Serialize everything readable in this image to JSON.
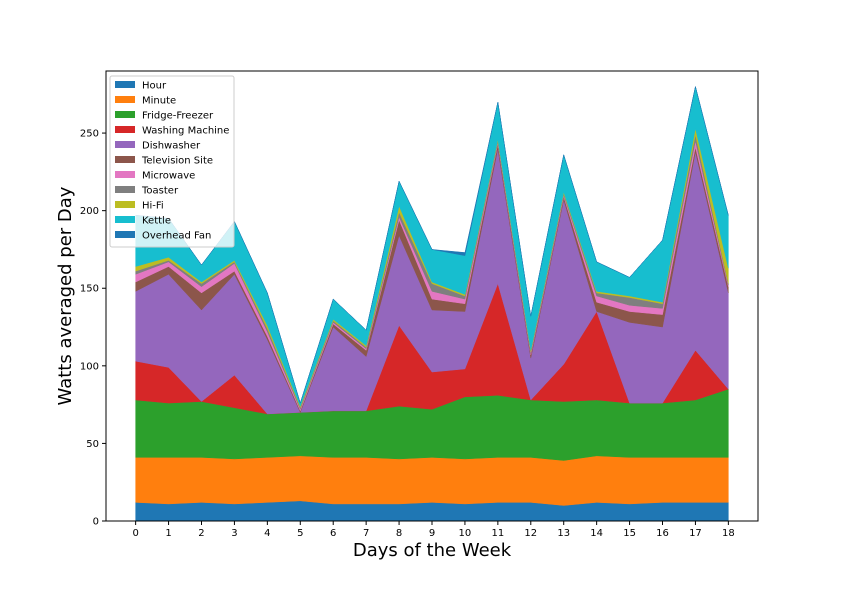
{
  "chart_data": {
    "type": "area",
    "stacked": true,
    "xlabel": "Days of the Week",
    "ylabel": "Watts averaged per Day",
    "x": [
      0,
      1,
      2,
      3,
      4,
      5,
      6,
      7,
      8,
      9,
      10,
      11,
      12,
      13,
      14,
      15,
      16,
      17,
      18
    ],
    "xlim": [
      -0.9,
      18.9
    ],
    "ylim": [
      0,
      290
    ],
    "yticks": [
      0,
      50,
      100,
      150,
      200,
      250
    ],
    "legend_position": "upper-left",
    "grid": false,
    "series": [
      {
        "name": "Hour",
        "color": "#1f77b4",
        "values": [
          12,
          11,
          12,
          11,
          12,
          13,
          11,
          11,
          11,
          12,
          11,
          12,
          12,
          10,
          12,
          11,
          12,
          12,
          12
        ]
      },
      {
        "name": "Minute",
        "color": "#ff7f0e",
        "values": [
          29,
          30,
          29,
          29,
          29,
          29,
          30,
          30,
          29,
          29,
          29,
          29,
          29,
          29,
          30,
          30,
          29,
          29,
          29
        ]
      },
      {
        "name": "Fridge-Freezer",
        "color": "#2ca02c",
        "values": [
          37,
          35,
          36,
          33,
          28,
          28,
          30,
          30,
          34,
          31,
          40,
          40,
          37,
          38,
          36,
          35,
          35,
          37,
          44
        ]
      },
      {
        "name": "Washing Machine",
        "color": "#d62728",
        "values": [
          25,
          23,
          0,
          21,
          0,
          0,
          0,
          0,
          52,
          24,
          18,
          72,
          0,
          24,
          57,
          0,
          0,
          32,
          0
        ]
      },
      {
        "name": "Dishwasher",
        "color": "#9467bd",
        "values": [
          45,
          60,
          59,
          65,
          48,
          0,
          54,
          35,
          58,
          40,
          37,
          87,
          27,
          106,
          0,
          52,
          49,
          128,
          62
        ]
      },
      {
        "name": "Television Site",
        "color": "#8c564b",
        "values": [
          6,
          5,
          11,
          2,
          2,
          1,
          2,
          4,
          10,
          7,
          5,
          3,
          2,
          2,
          6,
          7,
          8,
          3,
          4
        ]
      },
      {
        "name": "Microwave",
        "color": "#e377c2",
        "values": [
          5,
          3,
          4,
          5,
          3,
          1,
          1,
          1,
          2,
          5,
          3,
          1,
          1,
          1,
          4,
          4,
          4,
          4,
          1
        ]
      },
      {
        "name": "Toaster",
        "color": "#7f7f7f",
        "values": [
          2,
          1,
          2,
          1,
          2,
          1,
          1,
          1,
          3,
          5,
          2,
          1,
          1,
          1,
          2,
          5,
          3,
          4,
          1
        ]
      },
      {
        "name": "Hi-Fi",
        "color": "#bcbd22",
        "values": [
          3,
          2,
          1,
          1,
          2,
          1,
          1,
          1,
          4,
          1,
          1,
          1,
          1,
          1,
          1,
          1,
          1,
          4,
          10
        ]
      },
      {
        "name": "Kettle",
        "color": "#17becf",
        "values": [
          33,
          25,
          11,
          25,
          21,
          2,
          13,
          10,
          16,
          21,
          25,
          24,
          22,
          24,
          19,
          12,
          40,
          27,
          34
        ]
      },
      {
        "name": "Overhead Fan",
        "color": "#1f77b4",
        "values": [
          0,
          0,
          0,
          0,
          0,
          0,
          0,
          0,
          0,
          0,
          2,
          0,
          0,
          0,
          0,
          0,
          0,
          0,
          0
        ]
      }
    ]
  }
}
